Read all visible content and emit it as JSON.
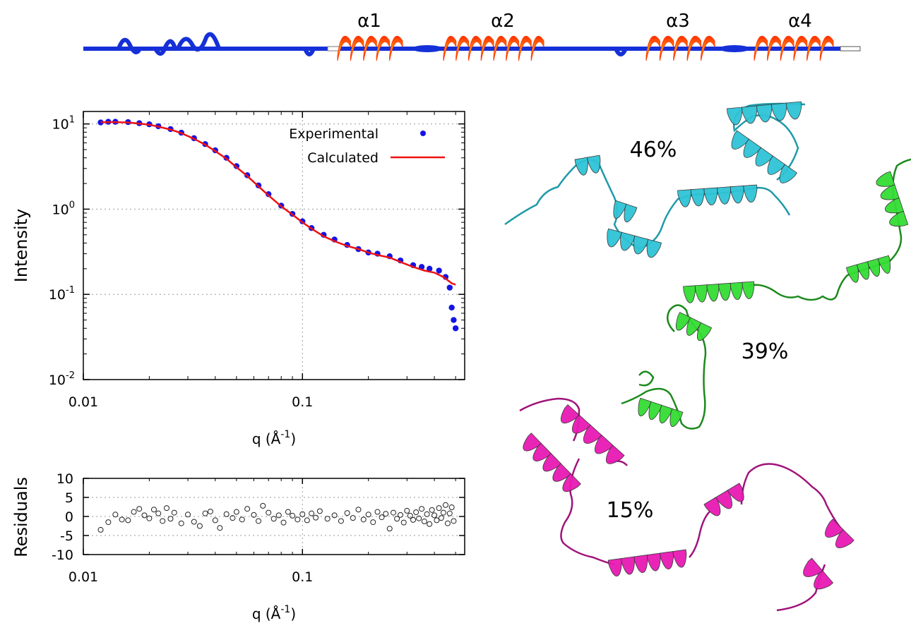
{
  "topology": {
    "helix_labels": [
      "α1",
      "α2",
      "α3",
      "α4"
    ],
    "colors": {
      "backbone": "#1530d8",
      "helix_outer": "#ff3b00",
      "helix_inner": "#ff9a10"
    }
  },
  "chart_data": [
    {
      "type": "scatter",
      "name_role": "saxs-intensity",
      "ylabel": "Intensity",
      "xlabel": "q (Å",
      "xlabel_sup": "-1",
      "xlabel_close": ")",
      "xscale": "log",
      "yscale": "log",
      "xlim": [
        0.01,
        0.55
      ],
      "ylim": [
        0.01,
        14
      ],
      "x_ticks": [
        0.01,
        0.1
      ],
      "x_tick_labels": [
        "0.01",
        "0.1"
      ],
      "y_ticks": [
        0.01,
        0.1,
        1,
        10
      ],
      "y_tick_labels": [
        {
          "base": "10",
          "exp": "-2"
        },
        {
          "base": "10",
          "exp": "-1"
        },
        {
          "base": "10",
          "exp": "0"
        },
        {
          "base": "10",
          "exp": "1"
        }
      ],
      "grid": true,
      "legend": "top-right",
      "series": [
        {
          "name": "Experimental",
          "color": "#1414e6",
          "marker": "filled-circle",
          "x": [
            0.012,
            0.013,
            0.014,
            0.016,
            0.018,
            0.02,
            0.022,
            0.025,
            0.028,
            0.032,
            0.036,
            0.04,
            0.045,
            0.05,
            0.056,
            0.063,
            0.07,
            0.08,
            0.09,
            0.1,
            0.11,
            0.125,
            0.14,
            0.16,
            0.18,
            0.2,
            0.22,
            0.25,
            0.28,
            0.32,
            0.35,
            0.38,
            0.42,
            0.45,
            0.47,
            0.48,
            0.49,
            0.5
          ],
          "y": [
            10.4,
            10.6,
            10.6,
            10.5,
            10.2,
            9.9,
            9.4,
            8.7,
            7.9,
            6.8,
            5.8,
            4.9,
            4.0,
            3.2,
            2.5,
            1.9,
            1.5,
            1.1,
            0.88,
            0.72,
            0.6,
            0.5,
            0.44,
            0.38,
            0.34,
            0.31,
            0.3,
            0.28,
            0.25,
            0.22,
            0.21,
            0.2,
            0.19,
            0.16,
            0.12,
            0.07,
            0.05,
            0.04
          ]
        },
        {
          "name": "Calculated",
          "color": "#ee1111",
          "marker": "line",
          "x": [
            0.012,
            0.014,
            0.016,
            0.018,
            0.02,
            0.022,
            0.025,
            0.028,
            0.032,
            0.036,
            0.04,
            0.045,
            0.05,
            0.056,
            0.063,
            0.07,
            0.08,
            0.09,
            0.1,
            0.11,
            0.125,
            0.14,
            0.16,
            0.18,
            0.2,
            0.22,
            0.25,
            0.28,
            0.32,
            0.36,
            0.4,
            0.44,
            0.48,
            0.5
          ],
          "y": [
            10.5,
            10.5,
            10.4,
            10.1,
            9.8,
            9.3,
            8.6,
            7.8,
            6.7,
            5.7,
            4.8,
            3.9,
            3.1,
            2.45,
            1.85,
            1.45,
            1.08,
            0.86,
            0.7,
            0.59,
            0.48,
            0.42,
            0.37,
            0.34,
            0.31,
            0.29,
            0.27,
            0.24,
            0.21,
            0.19,
            0.18,
            0.16,
            0.135,
            0.13
          ]
        }
      ]
    },
    {
      "type": "scatter",
      "name_role": "residuals",
      "ylabel": "Residuals",
      "xlabel": "q (Å",
      "xlabel_sup": "-1",
      "xlabel_close": ")",
      "xscale": "log",
      "xlim": [
        0.01,
        0.55
      ],
      "ylim": [
        -10,
        10
      ],
      "x_ticks": [
        0.01,
        0.1
      ],
      "x_tick_labels": [
        "0.01",
        "0.1"
      ],
      "y_ticks": [
        -10,
        -5,
        0,
        5,
        10
      ],
      "y_tick_labels": [
        "-10",
        "-5",
        "0",
        "5",
        "10"
      ],
      "grid": true,
      "series": [
        {
          "name": "",
          "color": "#222222",
          "marker": "open-circle",
          "x": [
            0.012,
            0.013,
            0.014,
            0.015,
            0.016,
            0.017,
            0.018,
            0.019,
            0.02,
            0.021,
            0.022,
            0.023,
            0.024,
            0.025,
            0.026,
            0.028,
            0.03,
            0.032,
            0.034,
            0.036,
            0.038,
            0.04,
            0.042,
            0.045,
            0.048,
            0.05,
            0.053,
            0.056,
            0.06,
            0.063,
            0.066,
            0.07,
            0.074,
            0.078,
            0.082,
            0.086,
            0.09,
            0.095,
            0.1,
            0.105,
            0.11,
            0.115,
            0.12,
            0.13,
            0.14,
            0.15,
            0.16,
            0.17,
            0.18,
            0.19,
            0.2,
            0.21,
            0.22,
            0.23,
            0.24,
            0.25,
            0.26,
            0.27,
            0.28,
            0.29,
            0.3,
            0.31,
            0.32,
            0.33,
            0.34,
            0.35,
            0.36,
            0.37,
            0.38,
            0.39,
            0.4,
            0.41,
            0.42,
            0.43,
            0.44,
            0.45,
            0.46,
            0.47,
            0.48,
            0.49
          ],
          "y": [
            -3.5,
            -1.5,
            0.5,
            -0.8,
            -1.0,
            1.2,
            2.0,
            0.3,
            -0.5,
            1.8,
            0.8,
            -1.2,
            2.2,
            -0.6,
            1.0,
            -1.8,
            0.5,
            -1.4,
            -2.5,
            0.8,
            1.3,
            -1.0,
            -3.0,
            0.6,
            -0.4,
            1.2,
            -0.8,
            2.0,
            0.4,
            -1.2,
            2.8,
            1.0,
            -0.6,
            0.3,
            -1.6,
            1.2,
            0.2,
            -0.8,
            0.6,
            -1.0,
            0.8,
            -0.3,
            1.4,
            -0.6,
            0.3,
            -1.2,
            0.9,
            -0.4,
            1.8,
            -0.8,
            0.5,
            -1.5,
            1.2,
            -0.2,
            0.7,
            -3.2,
            1.0,
            -0.6,
            0.4,
            -1.6,
            1.5,
            0.2,
            -0.9,
            1.1,
            -0.5,
            2.0,
            -1.3,
            0.6,
            -2.0,
            1.7,
            0.3,
            -1.0,
            2.2,
            -0.4,
            1.0,
            3.0,
            -1.8,
            0.8,
            2.4,
            -1.2
          ]
        }
      ]
    }
  ],
  "ensemble": [
    {
      "percent": "46%",
      "color": "#2ec4d6"
    },
    {
      "percent": "39%",
      "color": "#33dd33"
    },
    {
      "percent": "15%",
      "color": "#e81ab4"
    }
  ]
}
